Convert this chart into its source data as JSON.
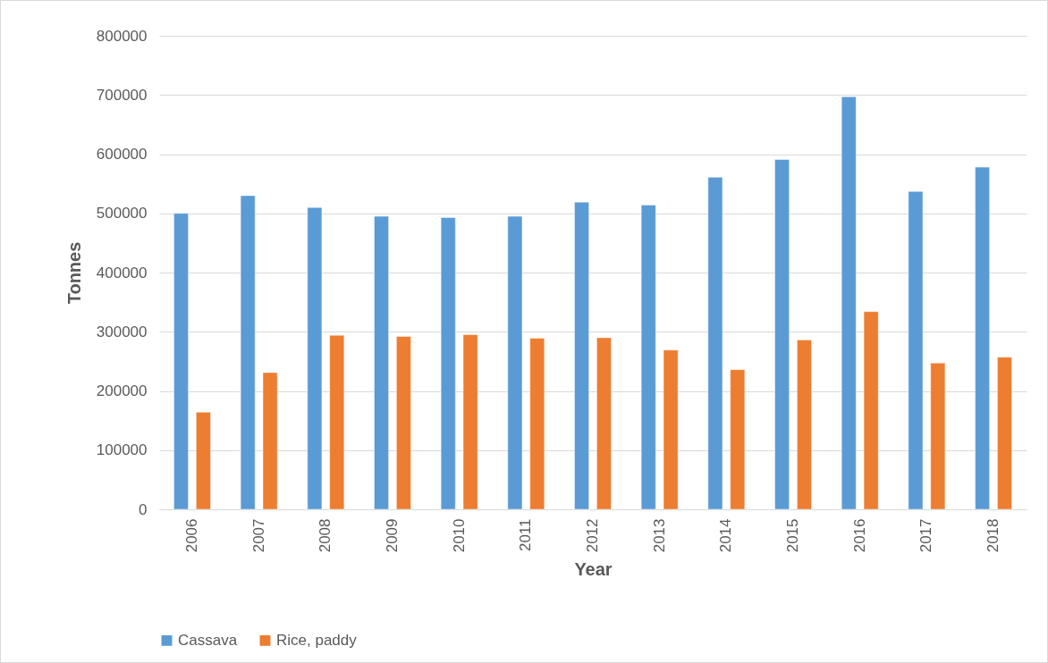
{
  "chart_data": {
    "type": "bar",
    "xlabel": "Year",
    "ylabel": "Tonnes",
    "categories": [
      "2006",
      "2007",
      "2008",
      "2009",
      "2010",
      "2011",
      "2012",
      "2013",
      "2014",
      "2015",
      "2016",
      "2017",
      "2018"
    ],
    "series": [
      {
        "name": "Cassava",
        "color": "#5b9bd5",
        "values": [
          500000,
          530000,
          510000,
          495000,
          493000,
          495000,
          519000,
          514000,
          561000,
          591000,
          697000,
          537000,
          578000
        ]
      },
      {
        "name": "Rice, paddy",
        "color": "#ed7d31",
        "values": [
          164000,
          231000,
          294000,
          292000,
          295000,
          289000,
          290000,
          269000,
          236000,
          286000,
          334000,
          247000,
          257000
        ]
      }
    ],
    "ylim": [
      0,
      800000
    ],
    "yticks": [
      0,
      100000,
      200000,
      300000,
      400000,
      500000,
      600000,
      700000,
      800000
    ],
    "grid": "y",
    "legend": "bottom"
  }
}
